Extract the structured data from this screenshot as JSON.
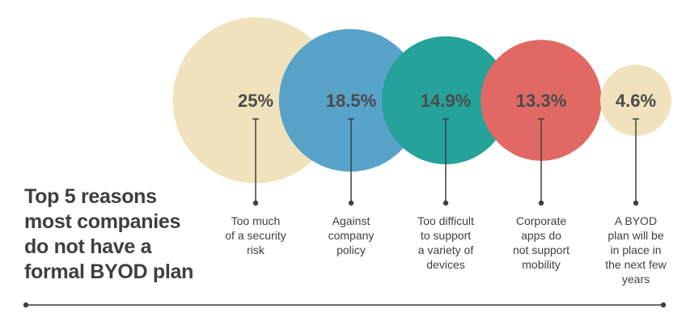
{
  "title_lines": [
    "Top 5 reasons",
    "most companies",
    "do not have a",
    "formal BYOD plan"
  ],
  "chart_data": {
    "type": "bubble",
    "title": "Top 5 reasons most companies do not have a formal BYOD plan",
    "unit": "%",
    "points": [
      {
        "value": 25,
        "value_label": "25%",
        "label_lines": [
          "Too much",
          "of a security",
          "risk"
        ],
        "color": "#efe2bd"
      },
      {
        "value": 18.5,
        "value_label": "18.5%",
        "label_lines": [
          "Against",
          "company",
          "policy"
        ],
        "color": "#4f9ec7"
      },
      {
        "value": 14.9,
        "value_label": "14.9%",
        "label_lines": [
          "Too difficult",
          "to support",
          "a variety of",
          "devices"
        ],
        "color": "#25a29a"
      },
      {
        "value": 13.3,
        "value_label": "13.3%",
        "label_lines": [
          "Corporate",
          "apps do",
          "not support",
          "mobility"
        ],
        "color": "#e06a63"
      },
      {
        "value": 4.6,
        "value_label": "4.6%",
        "label_lines": [
          "A BYOD",
          "plan will be",
          "in place in",
          "the next few",
          "years"
        ],
        "color": "#efe2bd"
      }
    ],
    "line_color": "#3d3f43",
    "text_color": "#4a4a4a"
  }
}
